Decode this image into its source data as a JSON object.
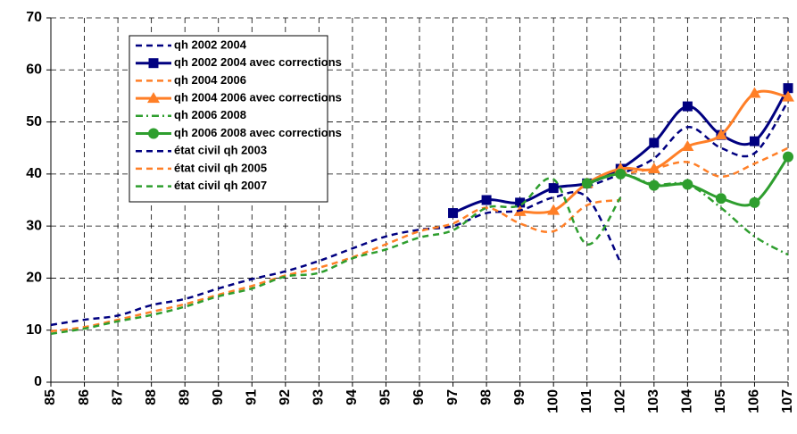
{
  "chart_data": {
    "type": "line",
    "x": [
      85,
      86,
      87,
      88,
      89,
      90,
      91,
      92,
      93,
      94,
      95,
      96,
      97,
      98,
      99,
      100,
      101,
      102,
      103,
      104,
      105,
      106,
      107
    ],
    "xlim": [
      85,
      107
    ],
    "xticks": [
      85,
      86,
      87,
      88,
      89,
      90,
      91,
      92,
      93,
      94,
      95,
      96,
      97,
      98,
      99,
      100,
      101,
      102,
      103,
      104,
      105,
      106,
      107
    ],
    "ylim": [
      0,
      70
    ],
    "yticks": [
      0,
      10,
      20,
      30,
      40,
      50,
      60,
      70
    ],
    "grid": true,
    "legend": "upper left",
    "series": [
      {
        "name": "qh 2002 2004",
        "color": "#000080",
        "line_style": "dashed",
        "marker": "none",
        "values": [
          null,
          null,
          null,
          null,
          null,
          null,
          null,
          null,
          null,
          null,
          null,
          null,
          null,
          null,
          null,
          null,
          37.5,
          40,
          43,
          49,
          45,
          44,
          54
        ]
      },
      {
        "name": "qh 2002 2004 avec corrections",
        "color": "#000080",
        "line_style": "solid",
        "marker": "square",
        "values": [
          null,
          null,
          null,
          null,
          null,
          null,
          null,
          null,
          null,
          null,
          null,
          null,
          32.5,
          35,
          34.5,
          37.3,
          38.2,
          41,
          46,
          53,
          47.5,
          46.3,
          56.5
        ]
      },
      {
        "name": "qh 2004 2006",
        "color": "#ff7f27",
        "line_style": "dashed",
        "marker": "none",
        "values": [
          null,
          null,
          null,
          null,
          null,
          null,
          null,
          null,
          null,
          null,
          null,
          null,
          null,
          null,
          null,
          null,
          null,
          40,
          41,
          42.3,
          39.5,
          42,
          45
        ]
      },
      {
        "name": "qh 2004 2006 avec corrections",
        "color": "#ff7f27",
        "line_style": "solid",
        "marker": "triangle",
        "values": [
          null,
          null,
          null,
          null,
          null,
          null,
          null,
          null,
          null,
          null,
          null,
          null,
          null,
          null,
          32.8,
          33,
          38.2,
          41,
          41,
          45.3,
          47.5,
          55.5,
          54.8
        ]
      },
      {
        "name": "qh 2006 2008",
        "color": "#2e9e2e",
        "line_style": "dashdot",
        "marker": "none",
        "values": [
          null,
          null,
          null,
          null,
          null,
          null,
          null,
          null,
          null,
          null,
          null,
          null,
          null,
          null,
          null,
          null,
          38,
          40,
          38,
          38,
          33.5,
          28,
          24.5
        ]
      },
      {
        "name": "qh 2006 2008 avec corrections",
        "color": "#2e9e2e",
        "line_style": "solid",
        "marker": "circle",
        "values": [
          null,
          null,
          null,
          null,
          null,
          null,
          null,
          null,
          null,
          null,
          null,
          null,
          null,
          null,
          null,
          null,
          38.2,
          40,
          37.8,
          38,
          35.3,
          34.5,
          43.3
        ]
      },
      {
        "name": "état civil qh 2003",
        "color": "#000080",
        "line_style": "dashed",
        "marker": "none",
        "values": [
          11,
          12,
          12.8,
          14.8,
          16,
          18,
          19.8,
          21.3,
          23.3,
          25.7,
          28,
          29.3,
          30,
          32.5,
          33,
          35.5,
          35.5,
          23,
          null,
          null,
          null,
          null,
          null
        ]
      },
      {
        "name": "état civil qh 2005",
        "color": "#ff7f27",
        "line_style": "dashed",
        "marker": "none",
        "values": [
          9.8,
          10.6,
          12,
          13.5,
          15,
          16.8,
          18.5,
          20.5,
          22,
          24,
          26.5,
          29,
          30.5,
          33.5,
          30.5,
          29,
          34,
          35,
          null,
          null,
          null,
          null,
          null
        ]
      },
      {
        "name": "état civil qh 2007",
        "color": "#2e9e2e",
        "line_style": "dashed",
        "marker": "none",
        "values": [
          9.3,
          10.3,
          11.7,
          12.9,
          14.5,
          16.5,
          18,
          20.3,
          21,
          23.8,
          25.5,
          27.8,
          29.2,
          33.5,
          34,
          39,
          26.5,
          35.5,
          null,
          null,
          null,
          null,
          null
        ]
      }
    ]
  }
}
